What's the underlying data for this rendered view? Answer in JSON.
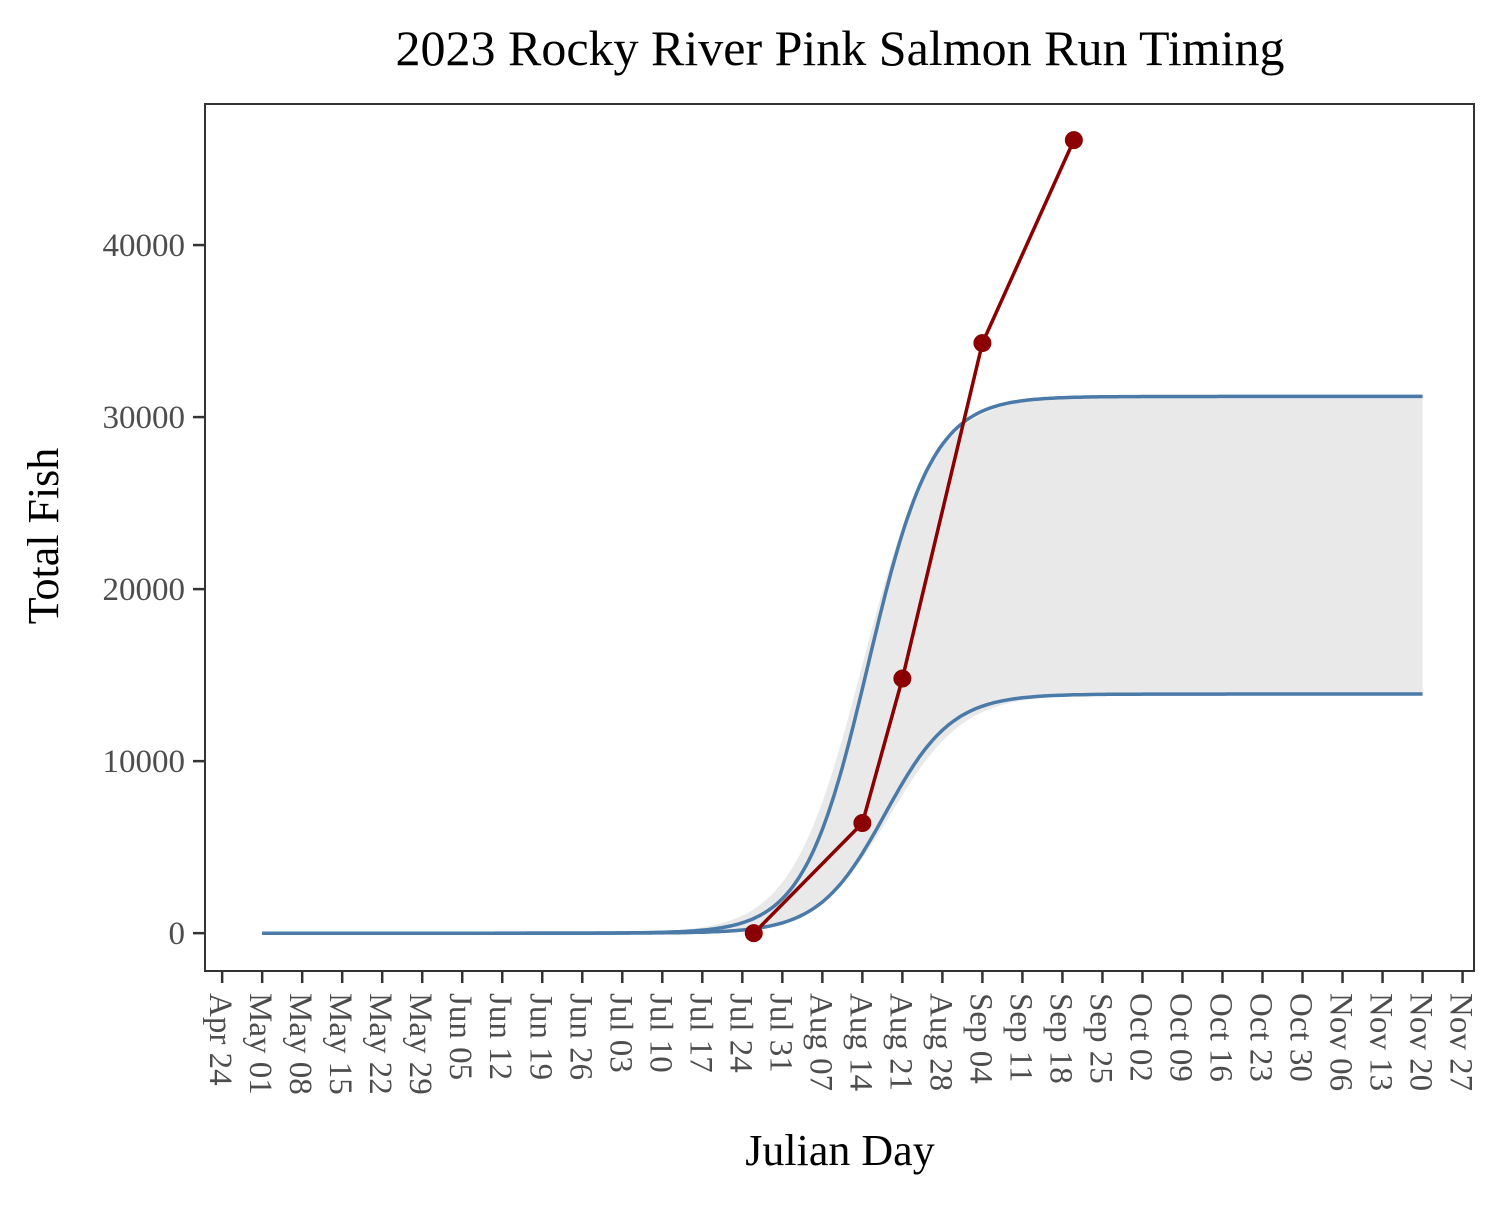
{
  "chart_data": {
    "type": "line",
    "title": "2023 Rocky River Pink Salmon Run Timing",
    "xlabel": "Julian Day",
    "ylabel": "Total Fish",
    "x_ticks": [
      "Apr 24",
      "May 01",
      "May 08",
      "May 15",
      "May 22",
      "May 29",
      "Jun 05",
      "Jun 12",
      "Jun 19",
      "Jun 26",
      "Jul 03",
      "Jul 10",
      "Jul 17",
      "Jul 24",
      "Jul 31",
      "Aug 07",
      "Aug 14",
      "Aug 21",
      "Aug 28",
      "Sep 04",
      "Sep 11",
      "Sep 18",
      "Sep 25",
      "Oct 02",
      "Oct 09",
      "Oct 16",
      "Oct 23",
      "Oct 30",
      "Nov 06",
      "Nov 13",
      "Nov 20",
      "Nov 27"
    ],
    "y_ticks": [
      0,
      10000,
      20000,
      30000,
      40000
    ],
    "xlim": [
      "Apr 21",
      "Nov 29"
    ],
    "ylim": [
      -2200,
      48200
    ],
    "grid": false,
    "colors": {
      "band": "#e9e9e9",
      "curve": "#4a7aa8",
      "observed": "#8b0000",
      "panel_border": "#333333"
    },
    "series": [
      {
        "kind": "ribbon",
        "x_range": [
          "May 01",
          "Nov 20"
        ],
        "upper": {
          "asymptote": 31200,
          "midpoint": "Aug 14",
          "scale_days": 6.2
        },
        "lower": {
          "asymptote": 13900,
          "midpoint": "Aug 19",
          "scale_days": 6.4
        }
      },
      {
        "kind": "line",
        "x_range": [
          "May 01",
          "Nov 20"
        ],
        "curve": {
          "asymptote": 31200,
          "midpoint": "Aug 15",
          "scale_days": 5.6
        }
      },
      {
        "kind": "line",
        "x_range": [
          "May 01",
          "Nov 20"
        ],
        "curve": {
          "asymptote": 13900,
          "midpoint": "Aug 18",
          "scale_days": 5.8
        }
      },
      {
        "kind": "line+points",
        "x": [
          "Jul 26",
          "Aug 14",
          "Aug 21",
          "Sep 04",
          "Sep 20"
        ],
        "y": [
          0,
          6400,
          14800,
          34300,
          46100
        ]
      }
    ]
  }
}
